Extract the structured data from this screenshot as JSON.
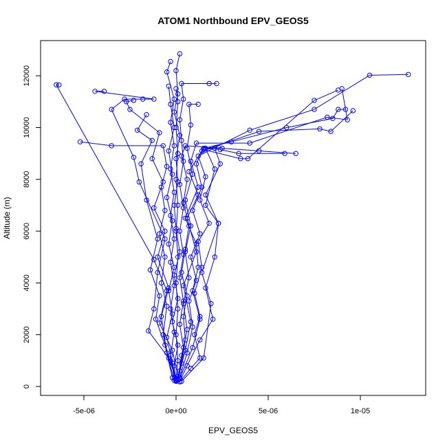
{
  "chart_data": {
    "type": "line",
    "title": "ATOM1 Northbound EPV_GEOS5",
    "xlabel": "EPV_GEOS5",
    "ylabel": "Altitude (m)",
    "xlim": [
      -7.5e-06,
      1.37e-05
    ],
    "ylim": [
      -300,
      13000
    ],
    "x_ticks": [
      {
        "value": -5e-06,
        "label": "-5e-06"
      },
      {
        "value": 0,
        "label": "0e+00"
      },
      {
        "value": 5e-06,
        "label": "5e-06"
      },
      {
        "value": 1e-05,
        "label": "1e-05"
      }
    ],
    "y_ticks": [
      {
        "value": 0,
        "label": "0"
      },
      {
        "value": 2000,
        "label": "2000"
      },
      {
        "value": 4000,
        "label": "4000"
      },
      {
        "value": 6000,
        "label": "6000"
      },
      {
        "value": 8000,
        "label": "8000"
      },
      {
        "value": 10000,
        "label": "10000"
      },
      {
        "value": 12000,
        "label": "12000"
      }
    ],
    "grid": false,
    "legend": "none",
    "marker": "open-circle",
    "series_color": "#0000ff",
    "series": [
      {
        "points": [
          [
            0.0,
            200
          ],
          [
            -1e-07,
            800
          ],
          [
            1e-07,
            1600
          ],
          [
            -2e-07,
            2500
          ],
          [
            1e-07,
            3400
          ],
          [
            -1e-07,
            4300
          ],
          [
            2e-07,
            5200
          ],
          [
            0.0,
            6100
          ],
          [
            -1e-07,
            7000
          ],
          [
            1e-07,
            7900
          ],
          [
            0.0,
            8800
          ],
          [
            2e-07,
            9700
          ],
          [
            -1e-07,
            10600
          ],
          [
            1e-07,
            11300
          ],
          [
            0.0,
            12200
          ],
          [
            2e-07,
            12850
          ]
        ]
      },
      {
        "points": [
          [
            1e-07,
            250
          ],
          [
            3e-07,
            900
          ],
          [
            5e-07,
            1800
          ],
          [
            4e-07,
            2700
          ],
          [
            6e-07,
            3500
          ],
          [
            3e-07,
            4400
          ],
          [
            5e-07,
            5300
          ],
          [
            7e-07,
            6200
          ],
          [
            4e-07,
            7100
          ],
          [
            6e-07,
            8000
          ],
          [
            3e-07,
            8900
          ],
          [
            5e-07,
            9300
          ],
          [
            2.5e-06,
            9200
          ],
          [
            4.5e-06,
            9100
          ],
          [
            6.5e-06,
            9000
          ]
        ]
      },
      {
        "points": [
          [
            0.0,
            300
          ],
          [
            -4e-07,
            1100
          ],
          [
            -7e-07,
            2000
          ],
          [
            -5e-07,
            3100
          ],
          [
            -8e-07,
            4000
          ],
          [
            -6e-07,
            5000
          ],
          [
            -9e-07,
            5900
          ],
          [
            -6e-07,
            6800
          ],
          [
            -8e-07,
            7700
          ],
          [
            -5e-07,
            8500
          ],
          [
            -7e-07,
            9300
          ],
          [
            -3.5e-06,
            9300
          ],
          [
            -5.2e-06,
            9450
          ]
        ]
      },
      {
        "points": [
          [
            2e-07,
            180
          ],
          [
            8e-07,
            700
          ],
          [
            1.3e-06,
            1100
          ],
          [
            1e-06,
            2000
          ],
          [
            1.3e-06,
            2700
          ],
          [
            1e-06,
            3600
          ],
          [
            1.4e-06,
            4600
          ],
          [
            1.2e-06,
            5600
          ],
          [
            1.8e-06,
            6300
          ],
          [
            1.3e-06,
            7200
          ],
          [
            1.6e-06,
            8100
          ],
          [
            1.2e-06,
            8900
          ],
          [
            4e-06,
            9900
          ],
          [
            7.5e-06,
            10700
          ],
          [
            1.05e-05,
            12020
          ],
          [
            1.26e-05,
            12050
          ]
        ]
      },
      {
        "points": [
          [
            0.0,
            220
          ],
          [
            -3e-07,
            1000
          ],
          [
            -1.5e-06,
            2150
          ],
          [
            -1.2e-06,
            3000
          ],
          [
            -1e-06,
            4400
          ],
          [
            -6e-07,
            5700
          ],
          [
            -2e-06,
            7900
          ],
          [
            -2.3e-06,
            8850
          ],
          [
            -3.5e-06,
            10700
          ],
          [
            -2.8e-06,
            11100
          ],
          [
            -1.8e-06,
            11100
          ],
          [
            -1.2e-06,
            11100
          ],
          [
            -4.4e-06,
            11400
          ],
          [
            -3.9e-06,
            11400
          ]
        ]
      },
      {
        "points": [
          [
            1e-07,
            400
          ],
          [
            -2e-07,
            1400
          ],
          [
            -9e-07,
            2450
          ],
          [
            -5e-07,
            3700
          ],
          [
            -1.2e-06,
            4900
          ],
          [
            -6.5e-06,
            11650
          ],
          [
            -6.35e-06,
            11650
          ]
        ]
      },
      {
        "points": [
          [
            2e-07,
            350
          ],
          [
            6e-07,
            1300
          ],
          [
            9e-07,
            2300
          ],
          [
            7e-07,
            3300
          ],
          [
            1.1e-06,
            4100
          ],
          [
            8e-07,
            5000
          ],
          [
            1.3e-06,
            5900
          ],
          [
            9e-07,
            6800
          ],
          [
            1.4e-06,
            7700
          ],
          [
            1.1e-06,
            8600
          ],
          [
            1.5e-06,
            9200
          ],
          [
            3e-06,
            9450
          ],
          [
            6e-06,
            10000
          ],
          [
            8.5e-06,
            10350
          ],
          [
            8.8e-06,
            10700
          ],
          [
            9.2e-06,
            10700
          ]
        ]
      },
      {
        "points": [
          [
            0.0,
            260
          ],
          [
            2e-07,
            600
          ],
          [
            4e-07,
            1500
          ],
          [
            2e-07,
            2400
          ],
          [
            4e-07,
            3300
          ],
          [
            2e-07,
            4200
          ],
          [
            4e-07,
            5100
          ],
          [
            2e-07,
            6000
          ],
          [
            4e-07,
            6900
          ],
          [
            2e-07,
            7800
          ],
          [
            4e-07,
            8700
          ],
          [
            3e-07,
            9500
          ],
          [
            2e-07,
            10300
          ],
          [
            4e-07,
            11100
          ],
          [
            3e-07,
            11700
          ],
          [
            1.8e-06,
            11700
          ],
          [
            2.2e-06,
            11700
          ]
        ]
      },
      {
        "points": [
          [
            -1e-07,
            320
          ],
          [
            -3e-07,
            1200
          ],
          [
            -1e-07,
            2100
          ],
          [
            -3e-07,
            3000
          ],
          [
            -1e-07,
            3900
          ],
          [
            -3e-07,
            4800
          ],
          [
            -1e-07,
            5700
          ],
          [
            -3e-07,
            6600
          ],
          [
            -1e-07,
            7500
          ],
          [
            -3e-07,
            8400
          ],
          [
            -1e-07,
            9300
          ],
          [
            -3e-07,
            10200
          ],
          [
            -1e-07,
            11100
          ],
          [
            -5e-07,
            12150
          ],
          [
            -3e-07,
            12550
          ]
        ]
      },
      {
        "points": [
          [
            3e-07,
            200
          ],
          [
            1.5e-06,
            1100
          ],
          [
            1.9e-06,
            3200
          ],
          [
            1.4e-06,
            4400
          ],
          [
            2.3e-06,
            6300
          ],
          [
            1.6e-06,
            7400
          ],
          [
            2.4e-06,
            8600
          ],
          [
            2.1e-06,
            9200
          ],
          [
            1.5e-06,
            9150
          ],
          [
            3.5e-06,
            8800
          ],
          [
            3.9e-06,
            8800
          ],
          [
            7.5e-06,
            11050
          ],
          [
            8.8e-06,
            11450
          ]
        ]
      },
      {
        "points": [
          [
            0.0,
            240
          ],
          [
            1e-07,
            1000
          ],
          [
            0.0,
            2000
          ],
          [
            1e-07,
            3000
          ],
          [
            0.0,
            4000
          ],
          [
            1e-07,
            5000
          ],
          [
            0.0,
            6000
          ],
          [
            1e-07,
            7000
          ],
          [
            0.0,
            8000
          ],
          [
            1e-07,
            9000
          ],
          [
            0.0,
            10000
          ],
          [
            1e-07,
            11000
          ],
          [
            0.0,
            11500
          ]
        ]
      },
      {
        "points": [
          [
            1e-07,
            280
          ],
          [
            5e-07,
            1400
          ],
          [
            8e-07,
            2500
          ],
          [
            4e-07,
            3900
          ],
          [
            1.1e-06,
            5200
          ],
          [
            6e-07,
            6500
          ],
          [
            1.2e-06,
            7400
          ],
          [
            7e-07,
            8300
          ],
          [
            1.4e-06,
            9100
          ],
          [
            4.5e-06,
            9850
          ],
          [
            7.8e-06,
            9950
          ],
          [
            8.4e-06,
            9850
          ],
          [
            9.6e-06,
            10650
          ]
        ]
      },
      {
        "points": [
          [
            -1e-07,
            230
          ],
          [
            -5e-07,
            1300
          ],
          [
            -8e-07,
            2700
          ],
          [
            -4e-07,
            3800
          ],
          [
            -1e-06,
            5000
          ],
          [
            -6e-07,
            6000
          ],
          [
            -1.2e-06,
            6900
          ],
          [
            -7e-07,
            7900
          ],
          [
            -1.3e-06,
            8800
          ],
          [
            -9e-07,
            9800
          ],
          [
            -2.5e-06,
            10700
          ],
          [
            -2.7e-06,
            11000
          ],
          [
            -2.3e-06,
            11050
          ]
        ]
      },
      {
        "points": [
          [
            2e-07,
            300
          ],
          [
            9e-07,
            1500
          ],
          [
            1.3e-06,
            2600
          ],
          [
            9e-07,
            3700
          ],
          [
            1.2e-06,
            4600
          ],
          [
            1.1e-06,
            5500
          ],
          [
            5e-07,
            6500
          ],
          [
            1.2e-06,
            7700
          ],
          [
            8e-07,
            8700
          ],
          [
            1.1e-06,
            9400
          ],
          [
            4e-06,
            9400
          ],
          [
            8.2e-06,
            10400
          ],
          [
            9.3e-06,
            10300
          ],
          [
            9e-06,
            11500
          ]
        ]
      },
      {
        "points": [
          [
            0.0,
            210
          ],
          [
            -2e-07,
            900
          ],
          [
            -5e-07,
            1900
          ],
          [
            -2e-07,
            2800
          ],
          [
            -4e-07,
            3700
          ],
          [
            -1e-07,
            4600
          ],
          [
            -4e-07,
            5500
          ],
          [
            -2e-07,
            6400
          ],
          [
            -5e-07,
            7300
          ],
          [
            -2e-07,
            8200
          ],
          [
            -4e-07,
            9100
          ],
          [
            -1e-07,
            10000
          ],
          [
            -3e-07,
            10900
          ],
          [
            -4e-07,
            11600
          ]
        ]
      },
      {
        "points": [
          [
            1e-07,
            270
          ],
          [
            3e-07,
            1200
          ],
          [
            6e-07,
            2200
          ],
          [
            4e-07,
            3200
          ],
          [
            7e-07,
            4200
          ],
          [
            5e-07,
            5200
          ],
          [
            8e-07,
            6200
          ],
          [
            5e-07,
            7200
          ],
          [
            9e-07,
            8200
          ],
          [
            6e-07,
            9200
          ],
          [
            8e-07,
            10100
          ],
          [
            7e-07,
            10900
          ],
          [
            1.2e-06,
            10900
          ]
        ]
      },
      {
        "points": [
          [
            -2e-07,
            340
          ],
          [
            -6e-07,
            1600
          ],
          [
            -1.1e-06,
            2600
          ],
          [
            -9e-07,
            3500
          ],
          [
            -1.4e-06,
            4500
          ],
          [
            -1e-06,
            5700
          ],
          [
            -1.6e-06,
            7200
          ],
          [
            -1.9e-06,
            8600
          ],
          [
            -1.3e-06,
            9500
          ],
          [
            -2.1e-06,
            9900
          ],
          [
            -1.6e-06,
            10500
          ]
        ]
      },
      {
        "points": [
          [
            2e-07,
            190
          ],
          [
            6e-07,
            800
          ],
          [
            1.3e-06,
            1800
          ],
          [
            2e-06,
            2600
          ],
          [
            1.6e-06,
            3800
          ],
          [
            2.1e-06,
            5000
          ],
          [
            2.3e-06,
            6300
          ],
          [
            1.6e-06,
            7000
          ],
          [
            2.1e-06,
            8400
          ],
          [
            1.6e-06,
            9200
          ],
          [
            2.1e-06,
            9200
          ],
          [
            2.4e-06,
            9150
          ],
          [
            3.4e-06,
            9000
          ],
          [
            5.9e-06,
            9000
          ]
        ]
      }
    ]
  }
}
